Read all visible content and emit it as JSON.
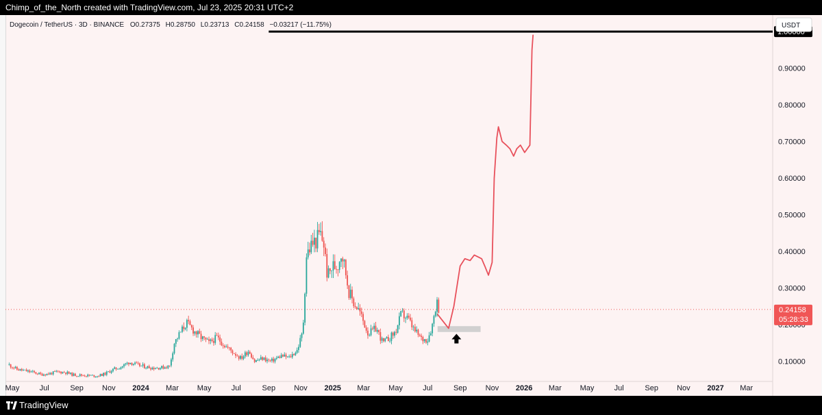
{
  "header": {
    "attribution": "Chimp_of_the_North created with TradingView.com, Jul 23, 2025 20:31 UTC+2"
  },
  "chart_header": {
    "symbol": "Dogecoin / TetherUS · 3D · BINANCE",
    "open_label": "O",
    "open": "0.27375",
    "high_label": "H",
    "high": "0.28750",
    "low_label": "L",
    "low": "0.23713",
    "close_label": "C",
    "close": "0.24158",
    "change": "−0.03217 (−11.75%)",
    "currency": "USDT"
  },
  "footer": {
    "brand": "TradingView"
  },
  "colors": {
    "up": "#26a69a",
    "down": "#ef5350",
    "projection": "#e8505b",
    "price_badge": "#f05656",
    "background": "#fdf3f3"
  },
  "chart_data": {
    "type": "candlestick",
    "title": "Dogecoin / TetherUS · 3D · BINANCE",
    "ylabel": "USDT",
    "ylim": [
      0.045,
      1.045
    ],
    "y_ticks": [
      "0.10000",
      "0.20000",
      "0.30000",
      "0.40000",
      "0.50000",
      "0.60000",
      "0.70000",
      "0.80000",
      "0.90000",
      "1.00000"
    ],
    "x_ticks": [
      {
        "label": "May",
        "date": "2023-05-01"
      },
      {
        "label": "Jul",
        "date": "2023-07-01"
      },
      {
        "label": "Sep",
        "date": "2023-09-01"
      },
      {
        "label": "Nov",
        "date": "2023-11-01"
      },
      {
        "label": "2024",
        "date": "2024-01-01",
        "bold": true
      },
      {
        "label": "Mar",
        "date": "2024-03-01"
      },
      {
        "label": "May",
        "date": "2024-05-01"
      },
      {
        "label": "Jul",
        "date": "2024-07-01"
      },
      {
        "label": "Sep",
        "date": "2024-09-01"
      },
      {
        "label": "Nov",
        "date": "2024-11-01"
      },
      {
        "label": "2025",
        "date": "2025-01-01",
        "bold": true
      },
      {
        "label": "Mar",
        "date": "2025-03-01"
      },
      {
        "label": "May",
        "date": "2025-05-01"
      },
      {
        "label": "Jul",
        "date": "2025-07-01"
      },
      {
        "label": "Sep",
        "date": "2025-09-01"
      },
      {
        "label": "Nov",
        "date": "2025-11-01"
      },
      {
        "label": "2026",
        "date": "2026-01-01",
        "bold": true
      },
      {
        "label": "Mar",
        "date": "2026-03-01"
      },
      {
        "label": "May",
        "date": "2026-05-01"
      },
      {
        "label": "Jul",
        "date": "2026-07-01"
      },
      {
        "label": "Sep",
        "date": "2026-09-01"
      },
      {
        "label": "Nov",
        "date": "2026-11-01"
      },
      {
        "label": "2027",
        "date": "2027-01-01",
        "bold": true
      },
      {
        "label": "Mar",
        "date": "2027-03-01"
      }
    ],
    "price_series": [
      {
        "date": "2023-04-25",
        "close": 0.09
      },
      {
        "date": "2023-05-10",
        "close": 0.078
      },
      {
        "date": "2023-05-25",
        "close": 0.074
      },
      {
        "date": "2023-06-10",
        "close": 0.07
      },
      {
        "date": "2023-06-25",
        "close": 0.064
      },
      {
        "date": "2023-07-10",
        "close": 0.066
      },
      {
        "date": "2023-07-25",
        "close": 0.071
      },
      {
        "date": "2023-08-10",
        "close": 0.07
      },
      {
        "date": "2023-08-25",
        "close": 0.063
      },
      {
        "date": "2023-09-10",
        "close": 0.062
      },
      {
        "date": "2023-09-25",
        "close": 0.061
      },
      {
        "date": "2023-10-10",
        "close": 0.06
      },
      {
        "date": "2023-10-25",
        "close": 0.066
      },
      {
        "date": "2023-11-10",
        "close": 0.078
      },
      {
        "date": "2023-11-25",
        "close": 0.085
      },
      {
        "date": "2023-12-10",
        "close": 0.098
      },
      {
        "date": "2023-12-25",
        "close": 0.09
      },
      {
        "date": "2024-01-10",
        "close": 0.085
      },
      {
        "date": "2024-01-25",
        "close": 0.082
      },
      {
        "date": "2024-02-10",
        "close": 0.083
      },
      {
        "date": "2024-02-25",
        "close": 0.087
      },
      {
        "date": "2024-03-05",
        "close": 0.15
      },
      {
        "date": "2024-03-15",
        "close": 0.175
      },
      {
        "date": "2024-03-28",
        "close": 0.205
      },
      {
        "date": "2024-04-10",
        "close": 0.185
      },
      {
        "date": "2024-04-25",
        "close": 0.165
      },
      {
        "date": "2024-05-10",
        "close": 0.15
      },
      {
        "date": "2024-05-25",
        "close": 0.165
      },
      {
        "date": "2024-06-10",
        "close": 0.142
      },
      {
        "date": "2024-06-25",
        "close": 0.125
      },
      {
        "date": "2024-07-10",
        "close": 0.108
      },
      {
        "date": "2024-07-25",
        "close": 0.13
      },
      {
        "date": "2024-08-05",
        "close": 0.1
      },
      {
        "date": "2024-08-20",
        "close": 0.108
      },
      {
        "date": "2024-09-05",
        "close": 0.1
      },
      {
        "date": "2024-09-25",
        "close": 0.115
      },
      {
        "date": "2024-10-10",
        "close": 0.11
      },
      {
        "date": "2024-10-25",
        "close": 0.13
      },
      {
        "date": "2024-11-05",
        "close": 0.18
      },
      {
        "date": "2024-11-12",
        "close": 0.39
      },
      {
        "date": "2024-11-22",
        "close": 0.42
      },
      {
        "date": "2024-12-01",
        "close": 0.43
      },
      {
        "date": "2024-12-08",
        "close": 0.45
      },
      {
        "date": "2024-12-15",
        "close": 0.42
      },
      {
        "date": "2024-12-22",
        "close": 0.33
      },
      {
        "date": "2025-01-01",
        "close": 0.36
      },
      {
        "date": "2025-01-10",
        "close": 0.36
      },
      {
        "date": "2025-01-18",
        "close": 0.4
      },
      {
        "date": "2025-01-25",
        "close": 0.35
      },
      {
        "date": "2025-02-01",
        "close": 0.29
      },
      {
        "date": "2025-02-10",
        "close": 0.26
      },
      {
        "date": "2025-02-20",
        "close": 0.24
      },
      {
        "date": "2025-02-28",
        "close": 0.21
      },
      {
        "date": "2025-03-10",
        "close": 0.175
      },
      {
        "date": "2025-03-25",
        "close": 0.19
      },
      {
        "date": "2025-04-07",
        "close": 0.15
      },
      {
        "date": "2025-04-20",
        "close": 0.165
      },
      {
        "date": "2025-05-01",
        "close": 0.18
      },
      {
        "date": "2025-05-12",
        "close": 0.23
      },
      {
        "date": "2025-05-25",
        "close": 0.215
      },
      {
        "date": "2025-06-05",
        "close": 0.185
      },
      {
        "date": "2025-06-20",
        "close": 0.16
      },
      {
        "date": "2025-07-01",
        "close": 0.16
      },
      {
        "date": "2025-07-10",
        "close": 0.2
      },
      {
        "date": "2025-07-18",
        "close": 0.265
      },
      {
        "date": "2025-07-23",
        "close": 0.24158
      }
    ],
    "current_price": {
      "value": 0.24158,
      "label": "0.24158",
      "timer": "05:28:33"
    },
    "target_line": {
      "value": 1.0,
      "label": "1.00000",
      "start_date": "2024-09-01"
    },
    "support_zone": {
      "date_from": "2025-07-20",
      "date_to": "2025-10-10",
      "price_from": 0.18,
      "price_to": 0.196
    },
    "arrow": {
      "date": "2025-08-25",
      "price": 0.175,
      "direction": "up"
    },
    "projection": [
      {
        "date": "2025-07-20",
        "price": 0.228
      },
      {
        "date": "2025-08-10",
        "price": 0.19
      },
      {
        "date": "2025-08-20",
        "price": 0.25
      },
      {
        "date": "2025-09-01",
        "price": 0.36
      },
      {
        "date": "2025-09-10",
        "price": 0.38
      },
      {
        "date": "2025-09-20",
        "price": 0.375
      },
      {
        "date": "2025-09-28",
        "price": 0.39
      },
      {
        "date": "2025-10-05",
        "price": 0.385
      },
      {
        "date": "2025-10-12",
        "price": 0.38
      },
      {
        "date": "2025-10-18",
        "price": 0.36
      },
      {
        "date": "2025-10-25",
        "price": 0.335
      },
      {
        "date": "2025-11-01",
        "price": 0.37
      },
      {
        "date": "2025-11-05",
        "price": 0.6
      },
      {
        "date": "2025-11-10",
        "price": 0.71
      },
      {
        "date": "2025-11-13",
        "price": 0.74
      },
      {
        "date": "2025-11-20",
        "price": 0.7
      },
      {
        "date": "2025-11-28",
        "price": 0.69
      },
      {
        "date": "2025-12-05",
        "price": 0.68
      },
      {
        "date": "2025-12-12",
        "price": 0.66
      },
      {
        "date": "2025-12-18",
        "price": 0.68
      },
      {
        "date": "2025-12-25",
        "price": 0.69
      },
      {
        "date": "2026-01-02",
        "price": 0.67
      },
      {
        "date": "2026-01-12",
        "price": 0.69
      },
      {
        "date": "2026-01-16",
        "price": 0.95
      },
      {
        "date": "2026-01-18",
        "price": 0.99
      }
    ]
  }
}
